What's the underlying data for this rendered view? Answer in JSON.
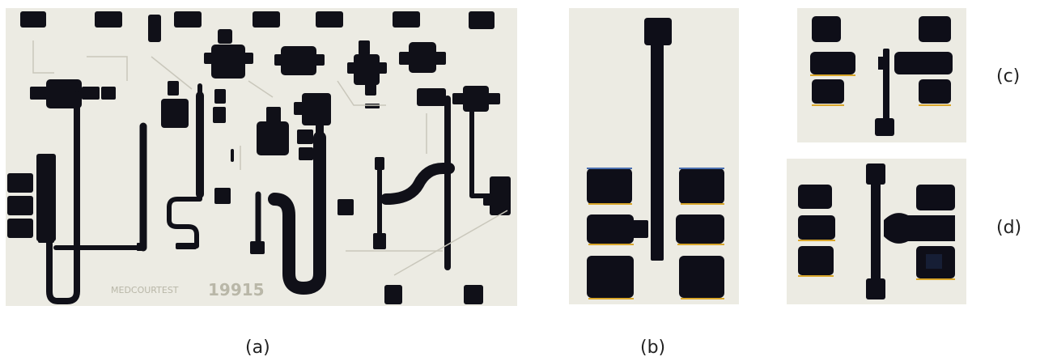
{
  "figure": {
    "panels": [
      {
        "id": "a",
        "label": "(a)",
        "chip_text": "MEDCOURTEST",
        "chip_number": "19915"
      },
      {
        "id": "b",
        "label": "(b)"
      },
      {
        "id": "c",
        "label": "(c)"
      },
      {
        "id": "d",
        "label": "(d)"
      }
    ]
  },
  "colors": {
    "background": "#ffffff",
    "substrate": "#ecebe3",
    "metal": "#101018",
    "caption_text": "#222222"
  }
}
